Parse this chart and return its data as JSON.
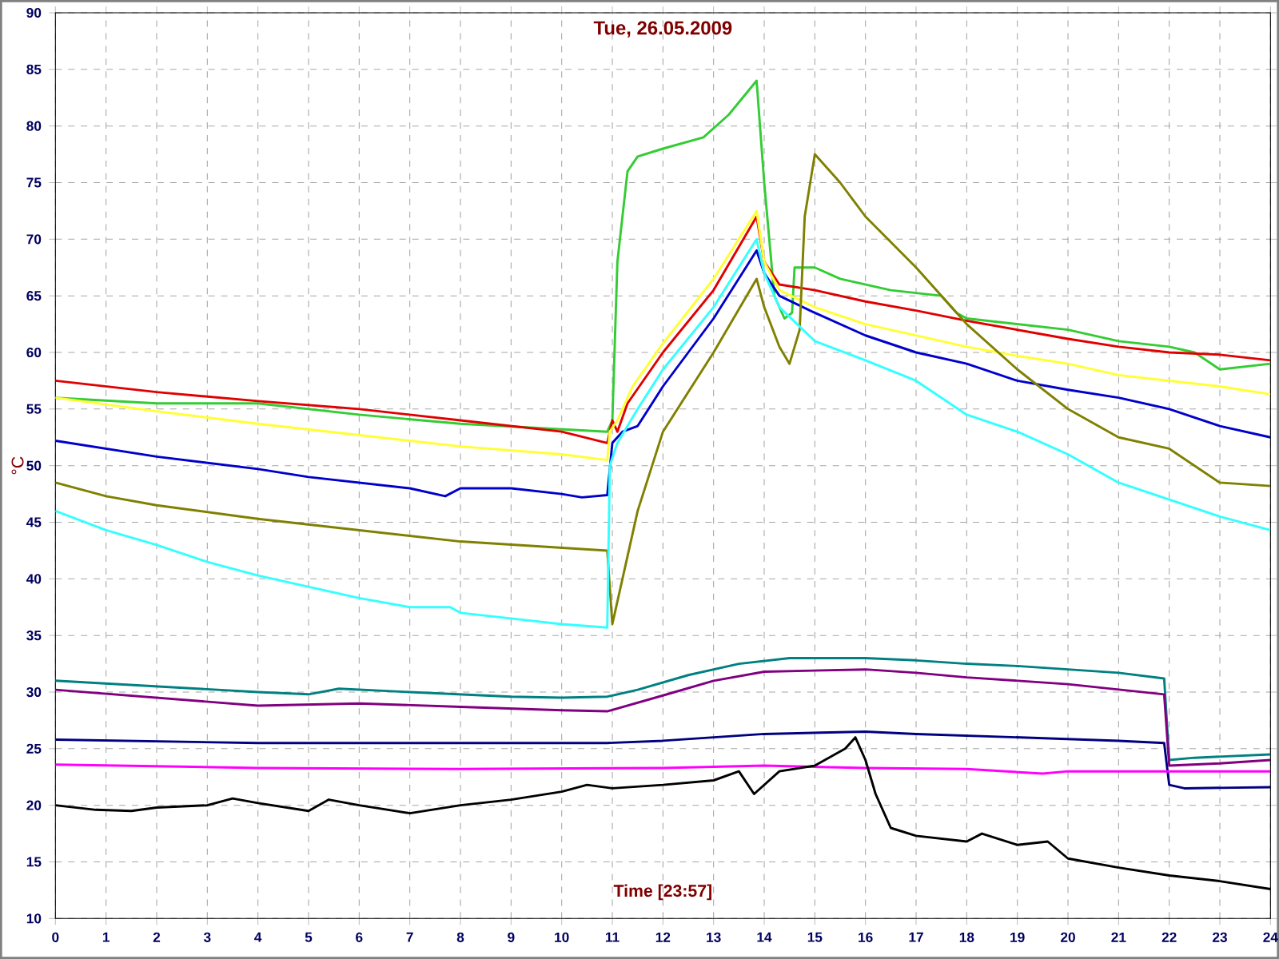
{
  "chart_data": {
    "type": "line",
    "title": "Tue, 26.05.2009",
    "xlabel": "Time [23:57]",
    "ylabel": "°C",
    "xlim": [
      0,
      24
    ],
    "ylim": [
      10,
      90
    ],
    "xticks": [
      0,
      1,
      2,
      3,
      4,
      5,
      6,
      7,
      8,
      9,
      10,
      11,
      12,
      13,
      14,
      15,
      16,
      17,
      18,
      19,
      20,
      21,
      22,
      23,
      24
    ],
    "yticks": [
      10,
      15,
      20,
      25,
      30,
      35,
      40,
      45,
      50,
      55,
      60,
      65,
      70,
      75,
      80,
      85,
      90
    ],
    "grid": true,
    "marker": "none",
    "line_style": "solid",
    "series": [
      {
        "color": "#33cc33",
        "x": [
          0,
          2,
          4,
          6,
          8,
          10.9,
          11,
          11.1,
          11.3,
          11.5,
          12,
          12.8,
          13.3,
          13.85,
          14,
          14.2,
          14.4,
          14.55,
          14.6,
          15,
          15.5,
          16.5,
          17.5,
          17.8,
          18,
          19,
          20,
          21,
          22,
          22.5,
          23,
          24
        ],
        "values": [
          56,
          55.5,
          55.5,
          54.5,
          53.7,
          53,
          54,
          68,
          76,
          77.3,
          78,
          79,
          81,
          84,
          75,
          65,
          63,
          63.5,
          67.5,
          67.5,
          66.5,
          65.5,
          65,
          63.5,
          63,
          62.5,
          62,
          61,
          60.5,
          60,
          58.5,
          59
        ]
      },
      {
        "color": "#e00000",
        "x": [
          0,
          2,
          4,
          6,
          8,
          10,
          10.9,
          11,
          11.1,
          11.3,
          12,
          13,
          13.85,
          14,
          14.3,
          15,
          16,
          17,
          18,
          19,
          20,
          21,
          22,
          23,
          24
        ],
        "values": [
          57.5,
          56.5,
          55.7,
          55,
          54,
          53,
          52,
          54,
          53,
          55.5,
          60,
          65.5,
          72,
          68,
          66,
          65.5,
          64.5,
          63.7,
          62.8,
          62,
          61.2,
          60.5,
          60,
          59.8,
          59.3
        ]
      },
      {
        "color": "#ffff33",
        "x": [
          0,
          2,
          4,
          6,
          8,
          10,
          10.9,
          10.95,
          11.1,
          11.4,
          12,
          13,
          13.85,
          14,
          14.3,
          15,
          16,
          17,
          18,
          19,
          20,
          21,
          22,
          23,
          24
        ],
        "values": [
          56,
          54.8,
          53.7,
          52.7,
          51.7,
          51,
          50.5,
          53,
          54,
          57,
          60.8,
          66.5,
          72.5,
          68,
          65.5,
          64,
          62.5,
          61.5,
          60.5,
          59.7,
          59,
          58,
          57.5,
          57,
          56.3
        ]
      },
      {
        "color": "#0000cc",
        "x": [
          0,
          2,
          4,
          5,
          7,
          7.7,
          8,
          9,
          10,
          10.4,
          10.9,
          11,
          11.2,
          11.5,
          12,
          13,
          13.85,
          14,
          14.3,
          15,
          16,
          17,
          18,
          19,
          20,
          21,
          22,
          23,
          24
        ],
        "values": [
          52.2,
          50.8,
          49.7,
          49,
          48,
          47.3,
          48,
          48,
          47.5,
          47.2,
          47.4,
          52,
          53,
          53.5,
          57,
          63,
          69,
          67,
          65,
          63.5,
          61.5,
          60,
          59,
          57.5,
          56.7,
          56,
          55,
          53.5,
          52.5
        ]
      },
      {
        "color": "#808000",
        "x": [
          0,
          1,
          2,
          4,
          6,
          8,
          10.9,
          11,
          11.2,
          11.5,
          12,
          13,
          13.85,
          14,
          14.3,
          14.5,
          14.7,
          14.8,
          15,
          15.5,
          16,
          17,
          18,
          19,
          20,
          21,
          22,
          23,
          24
        ],
        "values": [
          48.5,
          47.3,
          46.5,
          45.3,
          44.3,
          43.3,
          42.5,
          36,
          40,
          46,
          53,
          60,
          66.5,
          64,
          60.5,
          59,
          62,
          72,
          77.5,
          75,
          72,
          67.5,
          62.5,
          58.5,
          55,
          52.5,
          51.5,
          48.5,
          48.2
        ]
      },
      {
        "color": "#33ffff",
        "x": [
          0,
          1,
          2,
          3,
          4,
          5,
          6,
          7,
          7.8,
          8,
          9,
          10,
          10.9,
          10.95,
          11.1,
          11.5,
          12,
          13,
          13.85,
          14,
          14.3,
          15,
          16,
          17,
          18,
          19,
          20,
          21,
          22,
          23,
          24
        ],
        "values": [
          46,
          44.3,
          43,
          41.5,
          40.3,
          39.3,
          38.3,
          37.5,
          37.5,
          37,
          36.5,
          36,
          35.7,
          50,
          52,
          55,
          58.5,
          64,
          70,
          67,
          64,
          61,
          59.3,
          57.5,
          54.5,
          53,
          51,
          48.5,
          47,
          45.5,
          44.3
        ]
      },
      {
        "color": "#008080",
        "x": [
          0,
          2,
          4,
          5,
          5.6,
          7,
          9,
          10,
          10.9,
          11.5,
          12.5,
          13.5,
          14.5,
          16,
          17,
          18,
          19,
          20,
          21,
          21.9,
          22,
          22.5,
          23,
          24
        ],
        "values": [
          31,
          30.5,
          30,
          29.8,
          30.3,
          30,
          29.6,
          29.5,
          29.6,
          30.2,
          31.5,
          32.5,
          33,
          33,
          32.8,
          32.5,
          32.3,
          32,
          31.7,
          31.2,
          24,
          24.2,
          24.3,
          24.5
        ]
      },
      {
        "color": "#800080",
        "x": [
          0,
          2,
          4,
          6,
          8,
          10,
          10.9,
          12,
          13,
          14,
          16,
          17,
          18,
          20,
          21.9,
          22,
          23,
          24
        ],
        "values": [
          30.2,
          29.5,
          28.8,
          29,
          28.7,
          28.4,
          28.3,
          29.7,
          31,
          31.8,
          32,
          31.7,
          31.3,
          30.7,
          29.8,
          23.5,
          23.7,
          24
        ]
      },
      {
        "color": "#000080",
        "x": [
          0,
          4,
          8,
          10.9,
          12,
          14,
          16,
          17,
          19,
          21,
          21.9,
          22,
          22.3,
          24
        ],
        "values": [
          25.8,
          25.5,
          25.5,
          25.5,
          25.7,
          26.3,
          26.5,
          26.3,
          26,
          25.7,
          25.5,
          21.8,
          21.5,
          21.6
        ]
      },
      {
        "color": "#ff00ff",
        "x": [
          0,
          4,
          8,
          12,
          14,
          16,
          18,
          19.5,
          20,
          22,
          24
        ],
        "values": [
          23.6,
          23.3,
          23.2,
          23.3,
          23.5,
          23.3,
          23.2,
          22.8,
          23,
          23,
          23
        ]
      },
      {
        "color": "#000000",
        "x": [
          0,
          0.8,
          1.5,
          2,
          3,
          3.5,
          4,
          5,
          5.4,
          6,
          7,
          8,
          9,
          10,
          10.5,
          11,
          12,
          13,
          13.5,
          13.8,
          14.3,
          15,
          15.6,
          15.8,
          16,
          16.2,
          16.5,
          17,
          18,
          18.3,
          19,
          19.6,
          20,
          21,
          22,
          23,
          24
        ],
        "values": [
          20,
          19.6,
          19.5,
          19.8,
          20,
          20.6,
          20.2,
          19.5,
          20.5,
          20,
          19.3,
          20,
          20.5,
          21.2,
          21.8,
          21.5,
          21.8,
          22.2,
          23,
          21,
          23,
          23.5,
          25,
          26,
          24,
          21,
          18,
          17.3,
          16.8,
          17.5,
          16.5,
          16.8,
          15.3,
          14.5,
          13.8,
          13.3,
          12.6
        ]
      }
    ]
  }
}
